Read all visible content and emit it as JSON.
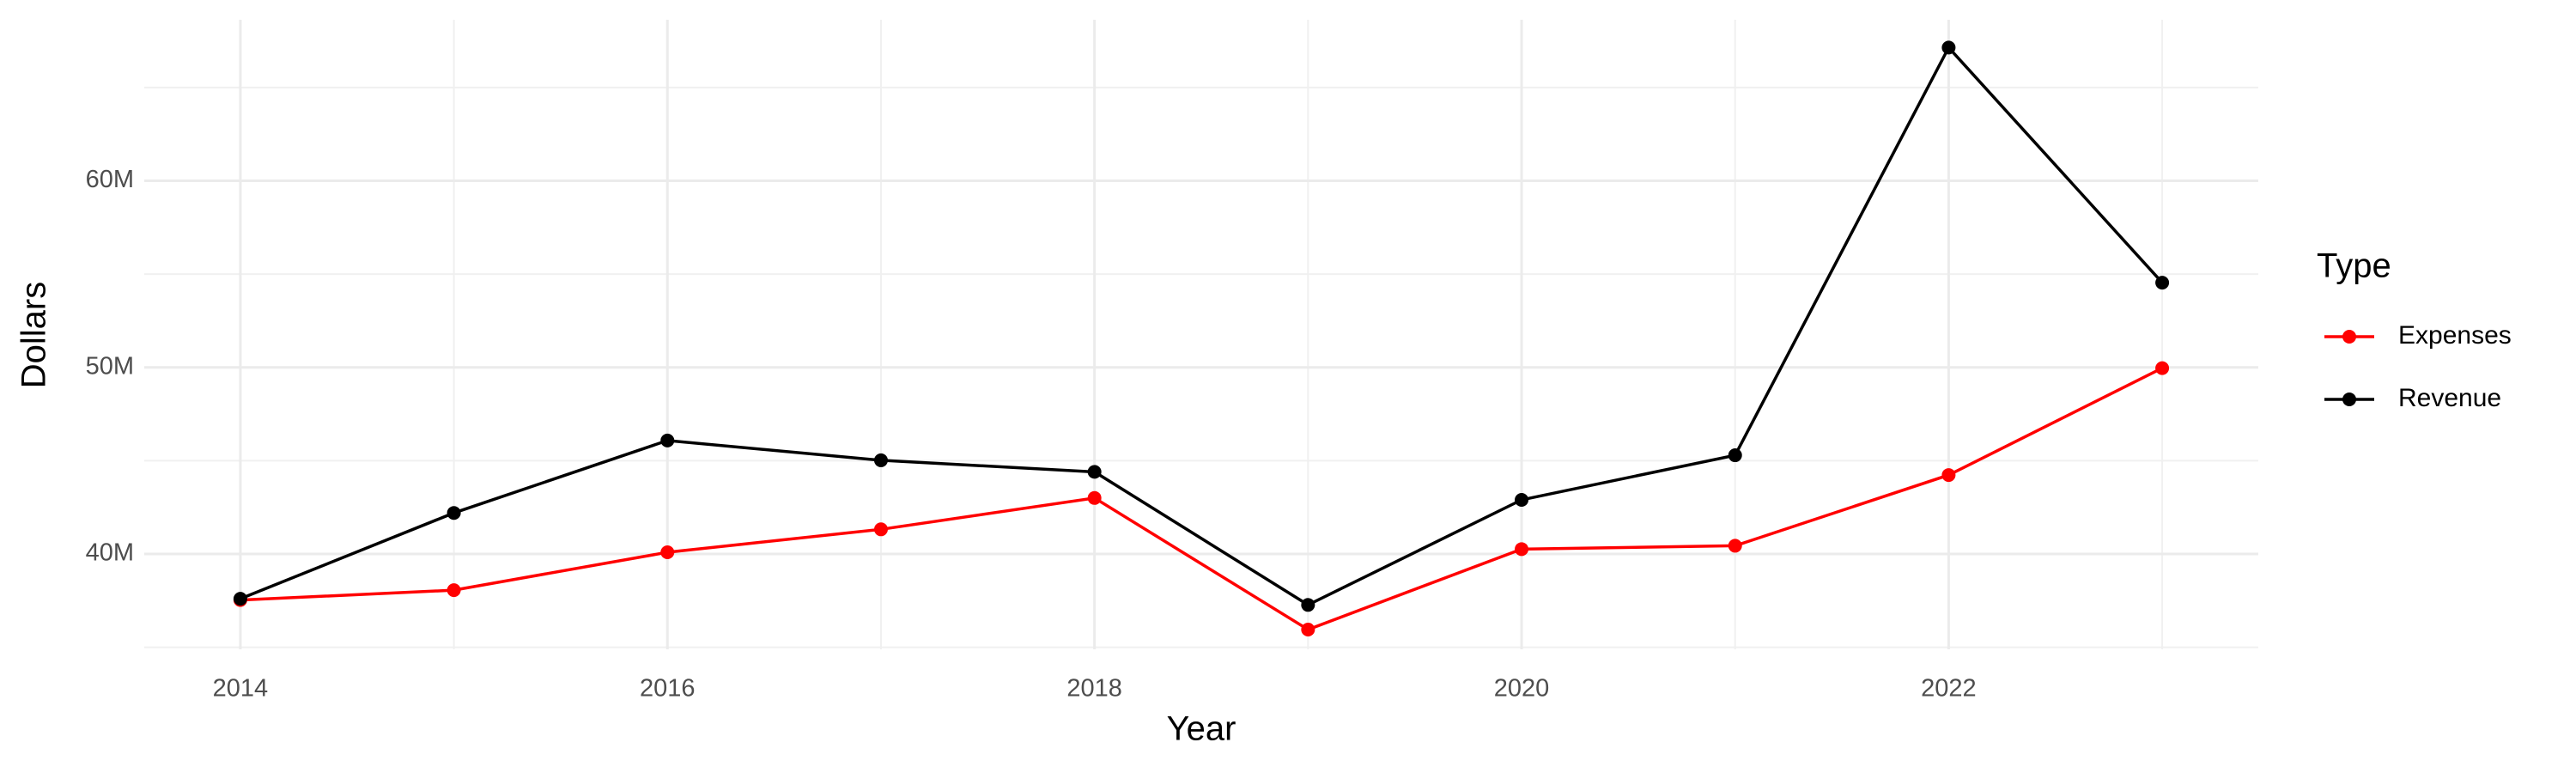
{
  "chart_data": {
    "type": "line",
    "x_label": "Year",
    "y_label": "Dollars",
    "legend_title": "Type",
    "x": [
      2014,
      2015,
      2016,
      2017,
      2018,
      2019,
      2020,
      2021,
      2022,
      2023
    ],
    "series": [
      {
        "name": "Expenses",
        "color": "#ff0000",
        "values": [
          37530000,
          38060000,
          40090000,
          41320000,
          43000000,
          35950000,
          40260000,
          40440000,
          44230000,
          49960000
        ]
      },
      {
        "name": "Revenue",
        "color": "#000000",
        "values": [
          37600000,
          42200000,
          46080000,
          45020000,
          44400000,
          37270000,
          42900000,
          45290000,
          67140000,
          54540000
        ]
      }
    ],
    "xlim": [
      2013.55,
      2023.45
    ],
    "xticks": [
      2014,
      2016,
      2018,
      2020,
      2022
    ],
    "ylim": [
      34890000,
      68630000
    ],
    "yticks": [
      {
        "value": 40000000,
        "label": "40M"
      },
      {
        "value": 50000000,
        "label": "50M"
      },
      {
        "value": 60000000,
        "label": "60M"
      }
    ],
    "grid": true,
    "legend": "right"
  }
}
